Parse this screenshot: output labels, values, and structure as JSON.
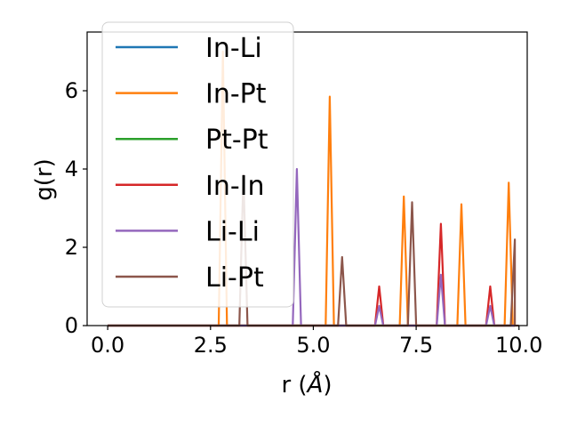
{
  "chart_data": {
    "type": "line",
    "title": "",
    "xlabel": "r (Å)",
    "xlabel_prefix": "r (",
    "xlabel_unit": "Å",
    "xlabel_suffix": ")",
    "ylabel": "g(r)",
    "xlim": [
      -0.5,
      10.2
    ],
    "ylim": [
      0,
      7.5
    ],
    "xticks": [
      0.0,
      2.5,
      5.0,
      7.5,
      10.0
    ],
    "xtick_labels": [
      "0.0",
      "2.5",
      "5.0",
      "7.5",
      "10.0"
    ],
    "yticks": [
      0,
      2,
      4,
      6
    ],
    "ytick_labels": [
      "0",
      "2",
      "4",
      "6"
    ],
    "grid": false,
    "legend_position": "upper-left",
    "series": [
      {
        "name": "In-Li",
        "color": "#1f77b4",
        "peaks": []
      },
      {
        "name": "In-Pt",
        "color": "#ff7f0e",
        "peaks": [
          [
            2.8,
            7.0
          ],
          [
            5.4,
            5.85
          ],
          [
            7.2,
            3.3
          ],
          [
            8.6,
            3.1
          ],
          [
            9.75,
            3.65
          ]
        ]
      },
      {
        "name": "Pt-Pt",
        "color": "#2ca02c",
        "peaks": []
      },
      {
        "name": "In-In",
        "color": "#d62728",
        "peaks": [
          [
            6.6,
            1.0
          ],
          [
            8.1,
            2.6
          ],
          [
            9.3,
            1.0
          ]
        ]
      },
      {
        "name": "Li-Li",
        "color": "#9467bd",
        "peaks": [
          [
            4.6,
            4.0
          ],
          [
            6.6,
            0.5
          ],
          [
            8.1,
            1.3
          ],
          [
            9.3,
            0.5
          ]
        ]
      },
      {
        "name": "Li-Pt",
        "color": "#8c564b",
        "peaks": [
          [
            3.3,
            3.85
          ],
          [
            5.7,
            1.75
          ],
          [
            7.4,
            3.15
          ],
          [
            9.9,
            2.2
          ]
        ]
      }
    ]
  }
}
